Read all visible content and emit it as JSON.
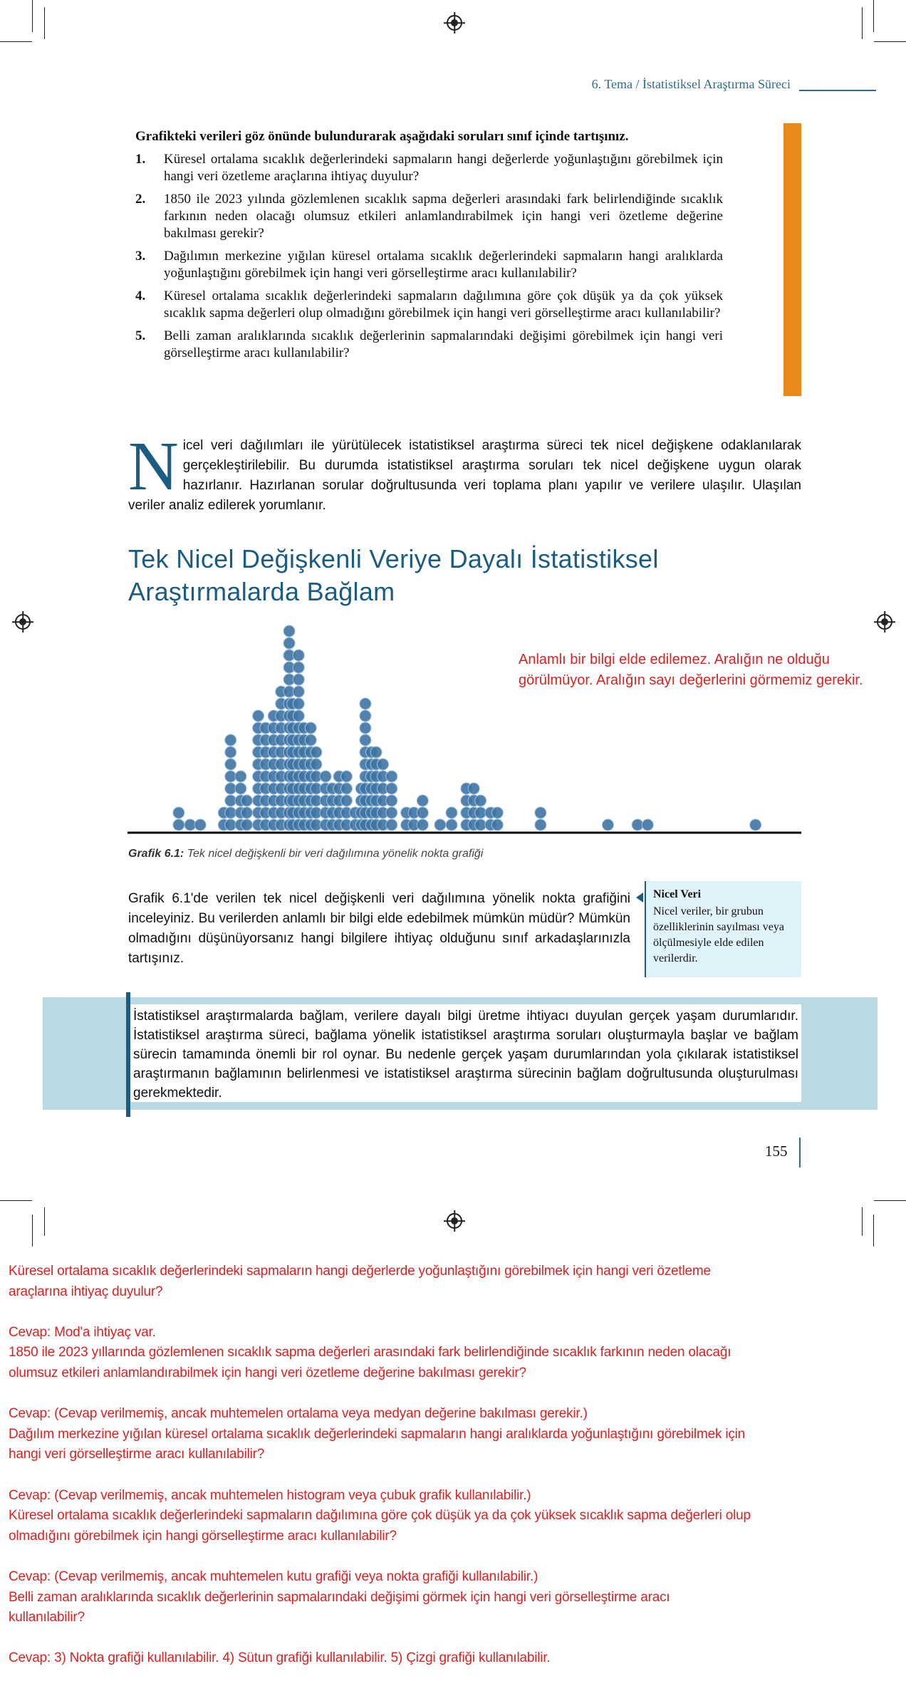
{
  "header": {
    "breadcrumb": "6. Tema / İstatistiksel Araştırma Süreci"
  },
  "colors": {
    "accent_blue": "#1a5c82",
    "orange": "#e8891a",
    "answer_red": "#e02020",
    "dot_blue": "#3f74a3",
    "band": "#b9d9e3",
    "sidebox": "#e0f3fb"
  },
  "discussion": {
    "intro": "Grafikteki verileri göz önünde bulundurarak aşağıdaki soruları sınıf içinde tartışınız.",
    "questions": [
      {
        "num": "1.",
        "text": "Küresel ortalama sıcaklık değerlerindeki sapmaların hangi değerlerde yoğunlaştığını görebilmek için hangi veri özetleme araçlarına ihtiyaç duyulur?"
      },
      {
        "num": "2.",
        "text": "1850 ile 2023 yılında gözlemlenen sıcaklık sapma değerleri arasındaki fark belirlendiğinde sıcaklık farkının neden olacağı olumsuz etkileri anlamlandırabilmek için hangi veri özetleme değerine bakılması gerekir?"
      },
      {
        "num": "3.",
        "text": "Dağılımın merkezine yığılan küresel ortalama sıcaklık değerlerindeki sapmaların hangi aralıklarda yoğunlaştığını görebilmek için hangi veri görselleştirme aracı kullanılabilir?"
      },
      {
        "num": "4.",
        "text": "Küresel ortalama sıcaklık değerlerindeki sapmaların dağılımına göre çok düşük ya da çok yüksek sıcaklık sapma değerleri olup olmadığını görebilmek için hangi veri görselleştirme aracı kullanılabilir?"
      },
      {
        "num": "5.",
        "text": "Belli zaman aralıklarında sıcaklık değerlerinin sapmalarındaki değişimi görebilmek için hangi veri görselleştirme aracı kullanılabilir?"
      }
    ]
  },
  "intro_paragraph": {
    "dropcap": "N",
    "text": "icel veri dağılımları ile yürütülecek istatistiksel araştırma süreci tek nicel değişkene odaklanılarak gerçekleştirilebilir. Bu durumda istatistiksel araştırma soruları tek nicel değişkene uygun olarak hazırlanır. Hazırlanan sorular doğrultusunda veri toplama planı yapılır ve verilere ulaşılır. Ulaşılan veriler analiz edilerek yorumlanır."
  },
  "section_title": {
    "line1": "Tek Nicel Değişkenli Veriye Dayalı İstatistiksel",
    "line2": "Araştırmalarda Bağlam"
  },
  "handwritten_note": "Anlamlı bir bilgi elde edilemez. Aralığın ne olduğu görülmüyor. Aralığın sayı değerlerini görmemiz gerekir.",
  "chart_data": {
    "type": "dot",
    "title": "",
    "xlabel": "",
    "ylabel": "",
    "xlim": [
      0,
      100
    ],
    "x_ticks": "none",
    "grid": false,
    "columns": [
      {
        "x": 7.6,
        "count": 2
      },
      {
        "x": 9.3,
        "count": 1
      },
      {
        "x": 10.8,
        "count": 1
      },
      {
        "x": 14.3,
        "count": 2
      },
      {
        "x": 15.3,
        "count": 8
      },
      {
        "x": 16.8,
        "count": 5
      },
      {
        "x": 17.7,
        "count": 3
      },
      {
        "x": 19.4,
        "count": 10
      },
      {
        "x": 20.5,
        "count": 9
      },
      {
        "x": 21.7,
        "count": 10
      },
      {
        "x": 22.8,
        "count": 12
      },
      {
        "x": 24.0,
        "count": 17
      },
      {
        "x": 24.5,
        "count": 11
      },
      {
        "x": 25.4,
        "count": 15
      },
      {
        "x": 26.2,
        "count": 9
      },
      {
        "x": 27.2,
        "count": 9
      },
      {
        "x": 28.0,
        "count": 7
      },
      {
        "x": 29.4,
        "count": 5
      },
      {
        "x": 30.4,
        "count": 4
      },
      {
        "x": 31.4,
        "count": 5
      },
      {
        "x": 32.5,
        "count": 5
      },
      {
        "x": 33.8,
        "count": 2
      },
      {
        "x": 34.7,
        "count": 4
      },
      {
        "x": 35.3,
        "count": 11
      },
      {
        "x": 36.2,
        "count": 7
      },
      {
        "x": 36.9,
        "count": 7
      },
      {
        "x": 37.9,
        "count": 6
      },
      {
        "x": 39.2,
        "count": 5
      },
      {
        "x": 41.4,
        "count": 2
      },
      {
        "x": 42.5,
        "count": 2
      },
      {
        "x": 43.8,
        "count": 3
      },
      {
        "x": 46.4,
        "count": 1
      },
      {
        "x": 48.1,
        "count": 2
      },
      {
        "x": 50.3,
        "count": 4
      },
      {
        "x": 51.4,
        "count": 4
      },
      {
        "x": 52.4,
        "count": 3
      },
      {
        "x": 53.9,
        "count": 2
      },
      {
        "x": 54.9,
        "count": 2
      },
      {
        "x": 61.3,
        "count": 2
      },
      {
        "x": 71.3,
        "count": 1
      },
      {
        "x": 75.7,
        "count": 1
      },
      {
        "x": 77.2,
        "count": 1
      },
      {
        "x": 93.2,
        "count": 1
      }
    ]
  },
  "caption": {
    "label": "Grafik 6.1:",
    "text": "Tek nicel değişkenli bir veri dağılımına yönelik nokta grafiği"
  },
  "activity_paragraph": "Grafik 6.1'de verilen tek nicel değişkenli veri dağılımına yönelik nokta grafiğini inceleyiniz. Bu verilerden anlamlı bir bilgi elde edebilmek mümkün müdür? Mümkün olmadığını düşünüyorsanız hangi bilgilere ihtiyaç olduğunu sınıf arkadaşlarınızla tartışınız.",
  "sidebox": {
    "title": "Nicel Veri",
    "text": "Nicel veriler, bir grubun özelliklerinin sayılması veya ölçülmesiyle elde edilen verilerdir."
  },
  "context_box": "İstatistiksel araştırmalarda bağlam, verilere dayalı bilgi üretme ihtiyacı duyulan gerçek yaşam durumlarıdır. İstatistiksel araştırma süreci, bağlama yönelik istatistiksel araştırma soruları oluşturmayla başlar ve bağlam sürecin tamamında önemli bir rol oynar. Bu nedenle gerçek yaşam durumlarından yola çıkılarak istatistiksel araştırmanın bağlamının belirlenmesi ve istatistiksel araştırma sürecinin bağlam doğrultusunda oluşturulması gerekmektedir.",
  "page_number": "155",
  "answers": [
    "Küresel ortalama sıcaklık değerlerindeki sapmaların hangi değerlerde yoğunlaştığını görebilmek için hangi veri özetleme",
    "araçlarına ihtiyaç duyulur?",
    "",
    "Cevap: Mod'a ihtiyaç var.",
    "1850 ile 2023 yıllarında gözlemlenen sıcaklık sapma değerleri arasındaki fark belirlendiğinde sıcaklık farkının neden olacağı",
    "olumsuz etkileri anlamlandırabilmek için hangi veri özetleme değerine bakılması gerekir?",
    "",
    "Cevap: (Cevap verilmemiş, ancak muhtemelen ortalama veya medyan değerine bakılması gerekir.)",
    "Dağılım merkezine yığılan küresel ortalama sıcaklık değerlerindeki sapmaların hangi aralıklarda yoğunlaştığını görebilmek için",
    "hangi veri görselleştirme aracı kullanılabilir?",
    "",
    "Cevap: (Cevap verilmemiş, ancak muhtemelen histogram veya çubuk grafik kullanılabilir.)",
    "Küresel ortalama sıcaklık değerlerindeki sapmaların dağılımına göre çok düşük ya da çok yüksek sıcaklık sapma değerleri olup",
    "olmadığını görebilmek için hangi görselleştirme aracı kullanılabilir?",
    "",
    "Cevap: (Cevap verilmemiş, ancak muhtemelen kutu grafiği veya nokta grafiği kullanılabilir.)",
    "Belli zaman aralıklarında sıcaklık değerlerinin sapmalarındaki değişimi görmek için hangi veri görselleştirme aracı",
    "kullanılabilir?",
    "",
    "Cevap: 3) Nokta grafiği kullanılabilir. 4) Sütun grafiği kullanılabilir. 5) Çizgi grafiği kullanılabilir."
  ]
}
